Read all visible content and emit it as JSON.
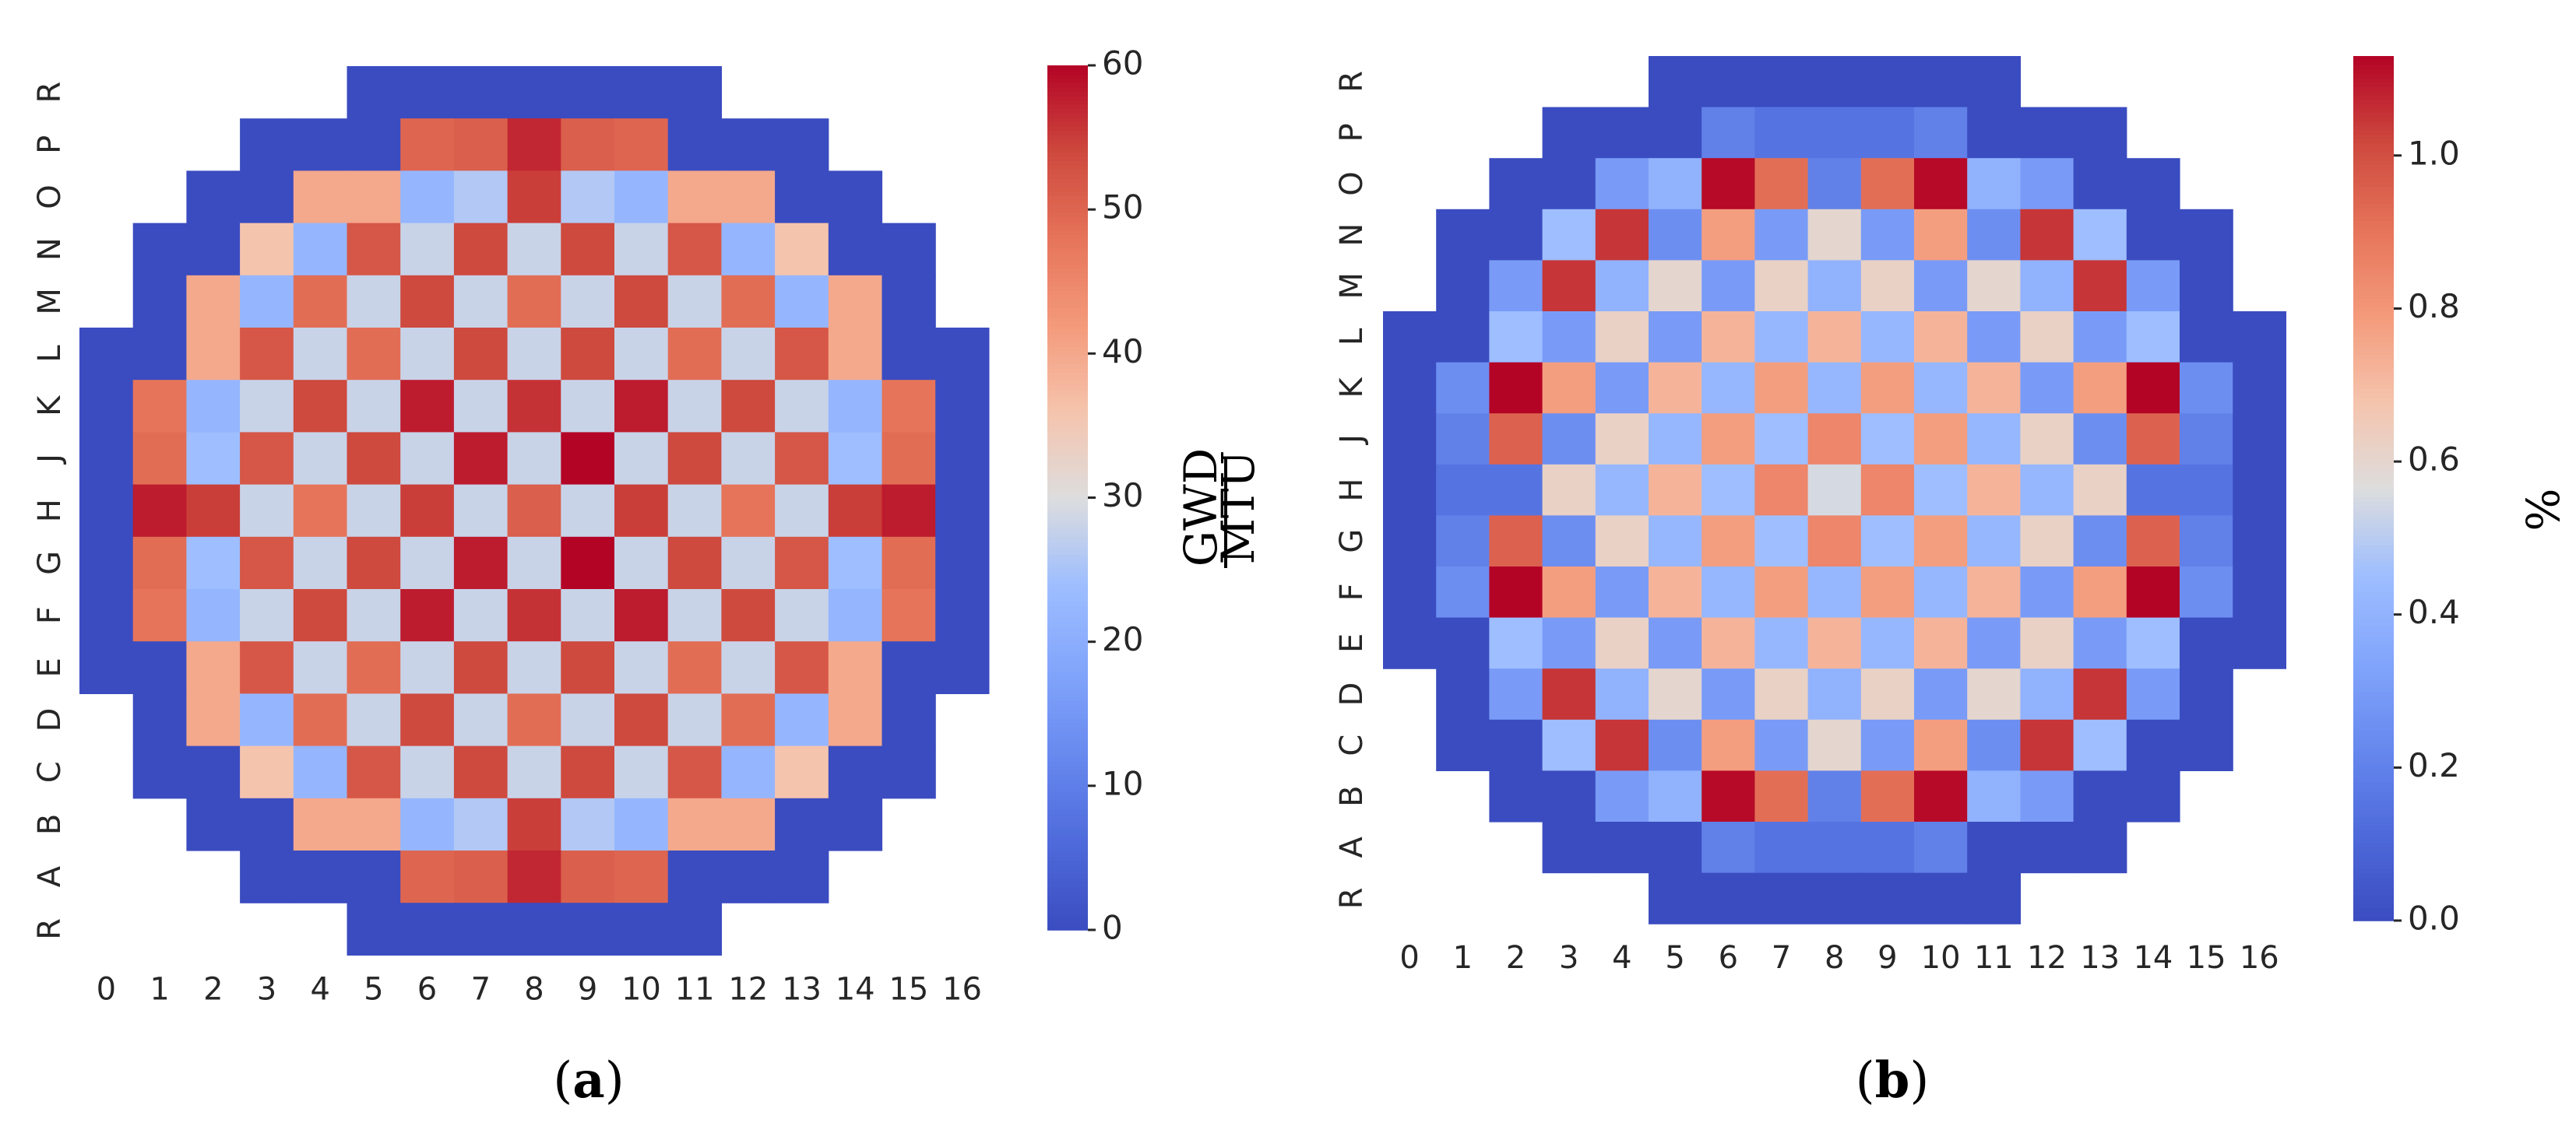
{
  "chart_data": [
    {
      "type": "heatmap",
      "title": "",
      "caption": "a",
      "xlabel": "",
      "ylabel": "",
      "x_tick_labels": [
        "0",
        "1",
        "2",
        "3",
        "4",
        "5",
        "6",
        "7",
        "8",
        "9",
        "10",
        "11",
        "12",
        "13",
        "14",
        "15",
        "16"
      ],
      "y_tick_labels": [
        "R",
        "P",
        "O",
        "N",
        "M",
        "L",
        "K",
        "J",
        "H",
        "G",
        "F",
        "E",
        "D",
        "C",
        "B",
        "A",
        "R"
      ],
      "colorbar": {
        "label": "GWD/MTU",
        "label_numerator": "GWD",
        "label_denominator": "MTU",
        "min": 0,
        "max": 60,
        "ticks": [
          "0",
          "10",
          "20",
          "30",
          "40",
          "50",
          "60"
        ]
      },
      "colormap": "coolwarm",
      "values": [
        [
          null,
          null,
          null,
          null,
          null,
          0,
          0,
          0,
          0,
          0,
          0,
          0,
          null,
          null,
          null,
          null,
          null
        ],
        [
          null,
          null,
          null,
          0,
          0,
          0,
          50,
          51,
          57,
          51,
          50,
          0,
          0,
          0,
          null,
          null,
          null
        ],
        [
          null,
          null,
          0,
          0,
          40,
          40,
          22,
          26,
          55,
          26,
          22,
          40,
          40,
          0,
          0,
          null,
          null
        ],
        [
          null,
          0,
          0,
          36,
          22,
          52,
          28,
          54,
          28,
          54,
          28,
          52,
          22,
          36,
          0,
          0,
          null
        ],
        [
          null,
          0,
          40,
          22,
          49,
          28,
          54,
          28,
          49,
          28,
          54,
          28,
          49,
          22,
          40,
          0,
          null
        ],
        [
          0,
          0,
          40,
          52,
          28,
          49,
          28,
          54,
          28,
          54,
          28,
          49,
          28,
          52,
          40,
          0,
          0
        ],
        [
          0,
          48,
          22,
          28,
          54,
          28,
          58,
          28,
          56,
          28,
          58,
          28,
          54,
          28,
          22,
          48,
          0
        ],
        [
          0,
          49,
          24,
          52,
          28,
          54,
          28,
          58,
          28,
          60,
          28,
          54,
          28,
          52,
          24,
          49,
          0
        ],
        [
          0,
          58,
          55,
          28,
          48,
          28,
          55,
          28,
          51,
          28,
          55,
          28,
          48,
          28,
          55,
          58,
          0
        ],
        [
          0,
          49,
          24,
          52,
          28,
          54,
          28,
          58,
          28,
          60,
          28,
          54,
          28,
          52,
          24,
          49,
          0
        ],
        [
          0,
          48,
          22,
          28,
          54,
          28,
          58,
          28,
          56,
          28,
          58,
          28,
          54,
          28,
          22,
          48,
          0
        ],
        [
          0,
          0,
          40,
          52,
          28,
          49,
          28,
          54,
          28,
          54,
          28,
          49,
          28,
          52,
          40,
          0,
          0
        ],
        [
          null,
          0,
          40,
          22,
          49,
          28,
          54,
          28,
          49,
          28,
          54,
          28,
          49,
          22,
          40,
          0,
          null
        ],
        [
          null,
          0,
          0,
          36,
          22,
          52,
          28,
          54,
          28,
          54,
          28,
          52,
          22,
          36,
          0,
          0,
          null
        ],
        [
          null,
          null,
          0,
          0,
          40,
          40,
          22,
          26,
          55,
          26,
          22,
          40,
          40,
          0,
          0,
          null,
          null
        ],
        [
          null,
          null,
          null,
          0,
          0,
          0,
          50,
          51,
          57,
          51,
          50,
          0,
          0,
          0,
          null,
          null,
          null
        ],
        [
          null,
          null,
          null,
          null,
          null,
          0,
          0,
          0,
          0,
          0,
          0,
          0,
          null,
          null,
          null,
          null,
          null
        ]
      ]
    },
    {
      "type": "heatmap",
      "title": "",
      "caption": "b",
      "xlabel": "",
      "ylabel": "",
      "x_tick_labels": [
        "0",
        "1",
        "2",
        "3",
        "4",
        "5",
        "6",
        "7",
        "8",
        "9",
        "10",
        "11",
        "12",
        "13",
        "14",
        "15",
        "16"
      ],
      "y_tick_labels": [
        "R",
        "P",
        "O",
        "N",
        "M",
        "L",
        "K",
        "J",
        "H",
        "G",
        "F",
        "E",
        "D",
        "C",
        "B",
        "A",
        "R"
      ],
      "colorbar": {
        "label": "%",
        "min": 0.0,
        "max": 1.13,
        "ticks": [
          "0.0",
          "0.2",
          "0.4",
          "0.6",
          "0.8",
          "1.0"
        ]
      },
      "colormap": "coolwarm",
      "values": [
        [
          null,
          null,
          null,
          null,
          null,
          0,
          0,
          0,
          0,
          0,
          0,
          0,
          null,
          null,
          null,
          null,
          null
        ],
        [
          null,
          null,
          null,
          0,
          0,
          0,
          0.2,
          0.15,
          0.15,
          0.15,
          0.2,
          0,
          0,
          0,
          null,
          null,
          null
        ],
        [
          null,
          null,
          0,
          0,
          0.3,
          0.4,
          1.12,
          0.92,
          0.2,
          0.92,
          1.12,
          0.4,
          0.3,
          0,
          0,
          null,
          null
        ],
        [
          null,
          0,
          0,
          0.45,
          1.05,
          0.25,
          0.78,
          0.3,
          0.6,
          0.3,
          0.78,
          0.25,
          1.05,
          0.45,
          0,
          0,
          null
        ],
        [
          null,
          0,
          0.3,
          1.05,
          0.4,
          0.6,
          0.3,
          0.62,
          0.4,
          0.62,
          0.3,
          0.6,
          0.4,
          1.05,
          0.3,
          0,
          null
        ],
        [
          0,
          0,
          0.45,
          0.3,
          0.62,
          0.3,
          0.72,
          0.42,
          0.72,
          0.42,
          0.72,
          0.3,
          0.62,
          0.3,
          0.45,
          0,
          0
        ],
        [
          0,
          0.25,
          1.13,
          0.78,
          0.3,
          0.72,
          0.42,
          0.78,
          0.42,
          0.78,
          0.42,
          0.72,
          0.3,
          0.78,
          1.13,
          0.25,
          0
        ],
        [
          0,
          0.2,
          0.95,
          0.25,
          0.62,
          0.42,
          0.78,
          0.45,
          0.85,
          0.45,
          0.78,
          0.42,
          0.62,
          0.25,
          0.95,
          0.2,
          0
        ],
        [
          0,
          0.15,
          0.15,
          0.62,
          0.42,
          0.72,
          0.45,
          0.85,
          0.55,
          0.85,
          0.45,
          0.72,
          0.42,
          0.62,
          0.15,
          0.15,
          0
        ],
        [
          0,
          0.2,
          0.95,
          0.25,
          0.62,
          0.42,
          0.78,
          0.45,
          0.85,
          0.45,
          0.78,
          0.42,
          0.62,
          0.25,
          0.95,
          0.2,
          0
        ],
        [
          0,
          0.25,
          1.13,
          0.78,
          0.3,
          0.72,
          0.42,
          0.78,
          0.42,
          0.78,
          0.42,
          0.72,
          0.3,
          0.78,
          1.13,
          0.25,
          0
        ],
        [
          0,
          0,
          0.45,
          0.3,
          0.62,
          0.3,
          0.72,
          0.42,
          0.72,
          0.42,
          0.72,
          0.3,
          0.62,
          0.3,
          0.45,
          0,
          0
        ],
        [
          null,
          0,
          0.3,
          1.05,
          0.4,
          0.6,
          0.3,
          0.62,
          0.4,
          0.62,
          0.3,
          0.6,
          0.4,
          1.05,
          0.3,
          0,
          null
        ],
        [
          null,
          0,
          0,
          0.45,
          1.05,
          0.25,
          0.78,
          0.3,
          0.6,
          0.3,
          0.78,
          0.25,
          1.05,
          0.45,
          0,
          0,
          null
        ],
        [
          null,
          null,
          0,
          0,
          0.3,
          0.4,
          1.12,
          0.92,
          0.2,
          0.92,
          1.12,
          0.4,
          0.3,
          0,
          0,
          null,
          null
        ],
        [
          null,
          null,
          null,
          0,
          0,
          0,
          0.2,
          0.15,
          0.15,
          0.15,
          0.2,
          0,
          0,
          0,
          null,
          null,
          null
        ],
        [
          null,
          null,
          null,
          null,
          null,
          0,
          0,
          0,
          0,
          0,
          0,
          0,
          null,
          null,
          null,
          null,
          null
        ]
      ]
    }
  ]
}
